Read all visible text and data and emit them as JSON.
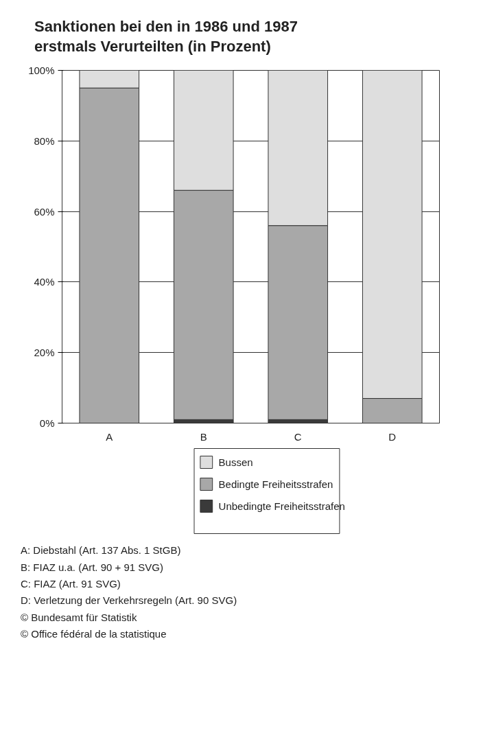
{
  "chart_data": {
    "type": "bar",
    "title": "Sanktionen bei den in 1986 und 1987 erstmals Verurteilten (in Prozent)",
    "categories": [
      "A",
      "B",
      "C",
      "D"
    ],
    "stacked": true,
    "series": [
      {
        "name": "Unbedingte Freiheitsstrafen",
        "color": "#3a3a3a",
        "values": [
          0,
          1,
          1,
          0
        ]
      },
      {
        "name": "Bedingte Freiheitsstrafen",
        "color": "#a8a8a8",
        "values": [
          95,
          65,
          55,
          7
        ]
      },
      {
        "name": "Bussen",
        "color": "#dedede",
        "values": [
          5,
          34,
          44,
          93
        ]
      }
    ],
    "ylim": [
      0,
      100
    ],
    "yticks": [
      {
        "value": 0,
        "label": "0%"
      },
      {
        "value": 20,
        "label": "20%"
      },
      {
        "value": 40,
        "label": "40%"
      },
      {
        "value": 60,
        "label": "60%"
      },
      {
        "value": 80,
        "label": "80%"
      },
      {
        "value": 100,
        "label": "100%"
      }
    ],
    "grid": "y",
    "legend": "bottom",
    "annotations": [
      "A: Diebstahl (Art. 137 Abs. 1 StGB)",
      "B: FIAZ u.a. (Art. 90 + 91 SVG)",
      "C: FIAZ (Art. 91 SVG)",
      "D: Verletzung der Verkehrsregeln (Art. 90 SVG)",
      "© Bundesamt für Statistik",
      "© Office fédéral de la statistique"
    ]
  }
}
